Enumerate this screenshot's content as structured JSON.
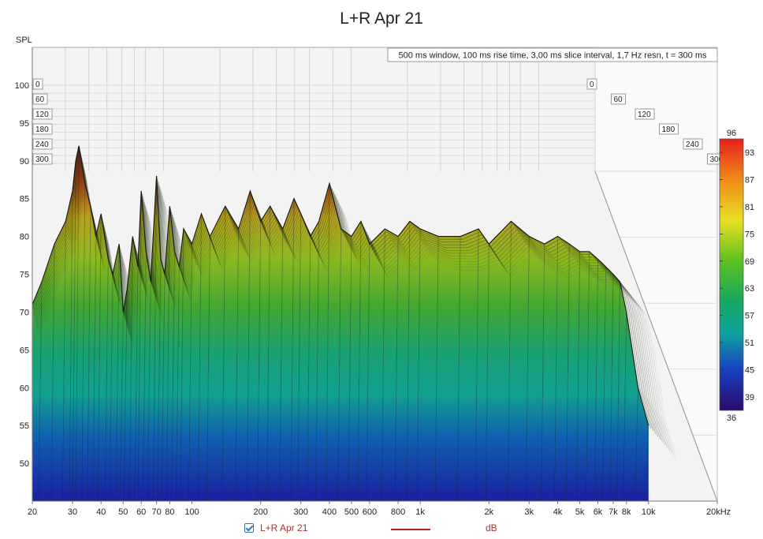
{
  "chart_data": {
    "type": "waterfall-3d",
    "title": "L+R Apr 21",
    "info": "500 ms window, 100 ms rise time, 3,00 ms slice interval, 1,7 Hz resn, t = 300 ms",
    "ylabel": "SPL",
    "y_ticks": [
      "100",
      "95",
      "90",
      "85",
      "80",
      "75",
      "70",
      "65",
      "60",
      "55",
      "50"
    ],
    "ylim": [
      45,
      100
    ],
    "x_scale": "log",
    "xlim": [
      20,
      20000
    ],
    "x_ticks": [
      {
        "v": 20,
        "label": "20"
      },
      {
        "v": 30,
        "label": "30"
      },
      {
        "v": 40,
        "label": "40"
      },
      {
        "v": 50,
        "label": "50"
      },
      {
        "v": 60,
        "label": "60"
      },
      {
        "v": 70,
        "label": "70"
      },
      {
        "v": 80,
        "label": "80"
      },
      {
        "v": 100,
        "label": "100"
      },
      {
        "v": 200,
        "label": "200"
      },
      {
        "v": 300,
        "label": "300"
      },
      {
        "v": 400,
        "label": "400"
      },
      {
        "v": 500,
        "label": "500"
      },
      {
        "v": 600,
        "label": "600"
      },
      {
        "v": 800,
        "label": "800"
      },
      {
        "v": 1000,
        "label": "1k"
      },
      {
        "v": 2000,
        "label": "2k"
      },
      {
        "v": 3000,
        "label": "3k"
      },
      {
        "v": 4000,
        "label": "4k"
      },
      {
        "v": 5000,
        "label": "5k"
      },
      {
        "v": 6000,
        "label": "6k"
      },
      {
        "v": 7000,
        "label": "7k"
      },
      {
        "v": 8000,
        "label": "8k"
      },
      {
        "v": 10000,
        "label": "10k"
      },
      {
        "v": 20000,
        "label": "20kHz"
      }
    ],
    "time_ticks_left": [
      "0",
      "60",
      "120",
      "180",
      "240",
      "300"
    ],
    "time_ticks_right": [
      "0",
      "60",
      "120",
      "180",
      "240",
      "300"
    ],
    "colorbar": {
      "min": 36,
      "max": 96,
      "ticks": [
        "93",
        "87",
        "81",
        "75",
        "69",
        "63",
        "57",
        "51",
        "45",
        "39"
      ],
      "min_label": "36",
      "max_label": "96"
    },
    "surface_front_profile": {
      "freq_hz": [
        20,
        22,
        25,
        28,
        30,
        31,
        32,
        34,
        36,
        38,
        40,
        43,
        45,
        48,
        50,
        52,
        55,
        58,
        60,
        63,
        66,
        70,
        73,
        76,
        80,
        84,
        88,
        92,
        100,
        110,
        120,
        140,
        160,
        180,
        200,
        220,
        250,
        280,
        300,
        330,
        360,
        400,
        450,
        500,
        550,
        600,
        700,
        800,
        900,
        1000,
        1200,
        1500,
        1800,
        2000,
        2500,
        3000,
        3500,
        4000,
        4500,
        5000,
        5500,
        6000,
        6500,
        7000,
        7500,
        8000,
        9000,
        10000
      ],
      "spl_db": [
        71,
        74,
        79,
        82,
        86,
        90,
        92,
        87,
        84,
        80,
        83,
        77,
        75,
        79,
        70,
        73,
        80,
        76,
        86,
        78,
        74,
        88,
        77,
        75,
        84,
        78,
        76,
        81,
        79,
        83,
        80,
        84,
        81,
        86,
        82,
        84,
        81,
        85,
        83,
        80,
        82,
        87,
        81,
        80,
        82,
        79,
        81,
        80,
        82,
        81,
        80,
        80,
        81,
        79,
        82,
        80,
        79,
        80,
        79,
        78,
        78,
        77,
        76,
        75,
        74,
        70,
        60,
        55
      ]
    },
    "legend": {
      "label": "L+R Apr 21",
      "checked": true,
      "unit": "dB",
      "color": "#b22222"
    },
    "colors": {
      "hot": "#c0392b",
      "mid": "#7fb000",
      "cold": "#1a237e"
    }
  }
}
